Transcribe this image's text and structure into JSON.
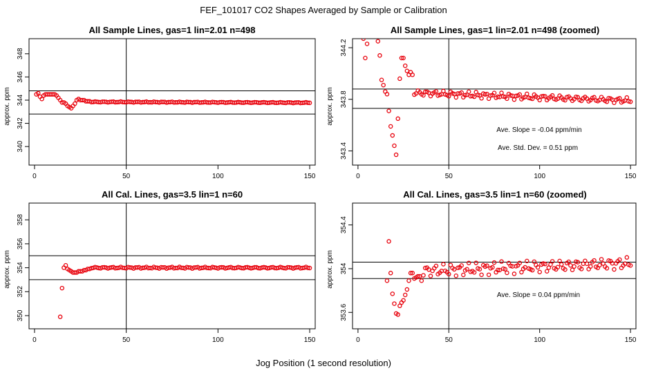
{
  "figure": {
    "title": "FEF_101017  CO2 Shapes Averaged by Sample or Calibration",
    "xlabel": "Jog Position (1 second resolution)"
  },
  "colors": {
    "points": "#e8000b",
    "axes": "#000000",
    "background": "#ffffff"
  },
  "chart_data": [
    {
      "type": "scatter",
      "title": "All Sample Lines, gas=1 lin=2.01 n=498",
      "xlabel": "",
      "ylabel": "approx. ppm",
      "xlim": [
        -3,
        153
      ],
      "ylim": [
        338.4,
        349.3
      ],
      "xticks": [
        0,
        50,
        100,
        150
      ],
      "yticks": [
        340,
        342,
        344,
        346,
        348
      ],
      "hlines": [
        344.8,
        342.8
      ],
      "vline": 50,
      "annotations": [],
      "series": [
        {
          "name": "sample average",
          "x": [
            1,
            2,
            3,
            4,
            5,
            6,
            7,
            8,
            9,
            10,
            11,
            12,
            13,
            14,
            15,
            16,
            17,
            18,
            19,
            20,
            21,
            22,
            23,
            24,
            25,
            26,
            27,
            28,
            29,
            30
          ],
          "y": [
            344.5,
            344.6,
            344.3,
            344.1,
            344.4,
            344.5,
            344.5,
            344.5,
            344.5,
            344.5,
            344.5,
            344.4,
            344.2,
            344.0,
            343.8,
            343.8,
            343.7,
            343.5,
            343.4,
            343.3,
            343.5,
            343.7,
            344.0,
            344.1,
            344.0,
            344.0,
            344.0,
            343.9,
            343.9,
            343.9
          ],
          "tail": {
            "x_start": 31,
            "x_end": 150,
            "level": 343.85,
            "end_level": 343.78,
            "amplitude": 0.04
          }
        }
      ]
    },
    {
      "type": "scatter",
      "title": "All Sample Lines, gas=1 lin=2.01 n=498 (zoomed)",
      "xlabel": "",
      "ylabel": "approx. ppm",
      "xlim": [
        -3,
        153
      ],
      "ylim": [
        343.29,
        344.27
      ],
      "xticks": [
        0,
        50,
        100,
        150
      ],
      "yticks": [
        343.4,
        343.8,
        344.2
      ],
      "hlines": [
        343.88,
        343.73
      ],
      "vline": 50,
      "annotations": [
        "Ave. Slope =  -0.04  ppm/min",
        "Ave. Std. Dev. =  0.51  ppm"
      ],
      "series": [
        {
          "name": "sample average (zoomed)",
          "x": [
            3,
            4,
            5,
            11,
            12,
            13,
            14,
            15,
            16,
            17,
            18,
            19,
            20,
            21,
            22,
            23,
            24,
            25,
            26,
            27,
            28,
            29,
            30
          ],
          "y": [
            344.27,
            344.12,
            344.23,
            344.25,
            344.14,
            343.95,
            343.91,
            343.86,
            343.84,
            343.71,
            343.59,
            343.52,
            343.44,
            343.37,
            343.65,
            343.96,
            344.12,
            344.12,
            344.06,
            344.02,
            343.99,
            344.01,
            343.99
          ],
          "tail": {
            "x_start": 31,
            "x_end": 150,
            "level": 343.85,
            "end_level": 343.79,
            "amplitude": 0.025
          }
        }
      ]
    },
    {
      "type": "scatter",
      "title": "All Cal. Lines, gas=3.5 lin=1 n=60",
      "xlabel": "",
      "ylabel": "approx. ppm",
      "xlim": [
        -3,
        153
      ],
      "ylim": [
        348.9,
        359.4
      ],
      "xticks": [
        0,
        50,
        100,
        150
      ],
      "yticks": [
        350,
        352,
        354,
        356,
        358
      ],
      "hlines": [
        355.0,
        353.0
      ],
      "vline": 50,
      "annotations": [],
      "series": [
        {
          "name": "calibration average",
          "x": [
            14,
            15,
            16,
            17,
            18,
            19,
            20,
            21,
            22,
            23,
            24,
            25,
            26,
            27,
            28,
            29,
            30
          ],
          "y": [
            349.9,
            352.3,
            354.0,
            354.2,
            353.9,
            353.8,
            353.7,
            353.6,
            353.6,
            353.6,
            353.7,
            353.7,
            353.7,
            353.8,
            353.8,
            353.9,
            353.9
          ],
          "tail": {
            "x_start": 31,
            "x_end": 150,
            "level": 354.0,
            "end_level": 354.0,
            "amplitude": 0.07
          }
        }
      ]
    },
    {
      "type": "scatter",
      "title": "All Cal. Lines, gas=3.5 lin=1 n=60 (zoomed)",
      "xlabel": "",
      "ylabel": "approx. ppm",
      "xlim": [
        -3,
        153
      ],
      "ylim": [
        353.45,
        354.6
      ],
      "xticks": [
        0,
        50,
        100,
        150
      ],
      "yticks": [
        353.6,
        354.0,
        354.4
      ],
      "hlines": [
        354.06,
        353.91
      ],
      "vline": 50,
      "annotations": [
        "Ave. Slope =  0.04  ppm/min"
      ],
      "series": [
        {
          "name": "calibration average (zoomed)",
          "x": [
            16,
            17,
            18,
            19,
            20,
            21,
            22,
            23,
            24,
            25,
            26,
            27,
            28,
            29,
            30,
            31,
            32,
            33,
            34,
            35
          ],
          "y": [
            353.89,
            354.25,
            353.96,
            353.77,
            353.68,
            353.59,
            353.58,
            353.66,
            353.69,
            353.71,
            353.76,
            353.81,
            353.89,
            353.96,
            353.96,
            353.91,
            353.92,
            353.93,
            353.93,
            353.89
          ],
          "tail": {
            "x_start": 36,
            "x_end": 150,
            "level": 353.98,
            "end_level": 354.05,
            "amplitude": 0.06
          }
        }
      ]
    }
  ]
}
